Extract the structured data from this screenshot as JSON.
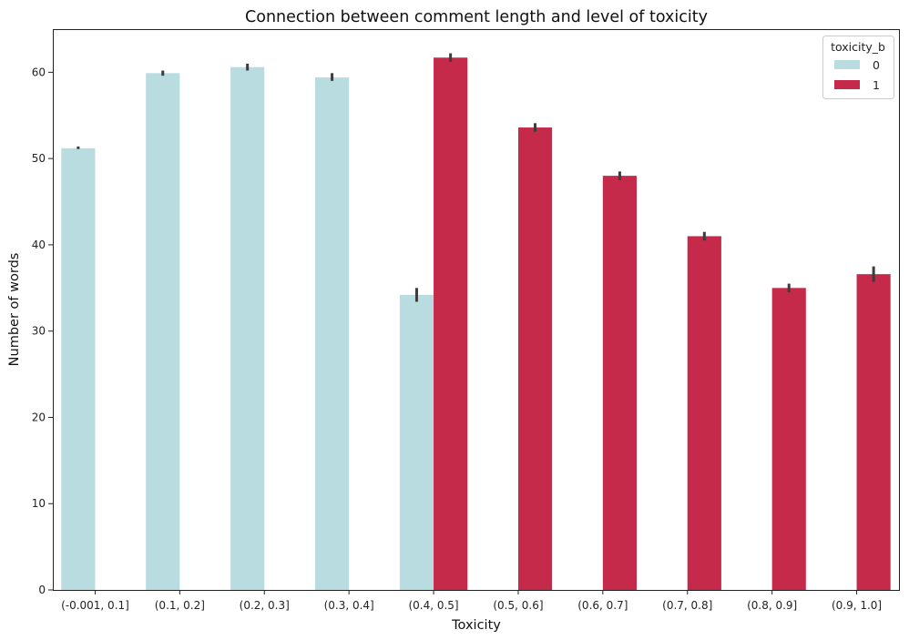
{
  "chart_data": {
    "type": "bar",
    "title": "Connection between comment length and level of toxicity",
    "xlabel": "Toxicity",
    "ylabel": "Number of words",
    "categories": [
      "(-0.001, 0.1]",
      "(0.1, 0.2]",
      "(0.2, 0.3]",
      "(0.3, 0.4]",
      "(0.4, 0.5]",
      "(0.5, 0.6]",
      "(0.6, 0.7]",
      "(0.7, 0.8]",
      "(0.8, 0.9]",
      "(0.9, 1.0]"
    ],
    "ylim": [
      0,
      65
    ],
    "yticks": [
      0,
      10,
      20,
      30,
      40,
      50,
      60
    ],
    "grid": false,
    "legend": {
      "title": "toxicity_b",
      "position": "top-right"
    },
    "series": [
      {
        "name": "0",
        "color": "#b8dce0",
        "values": [
          51.2,
          59.9,
          60.6,
          59.4,
          34.2,
          null,
          null,
          null,
          null,
          null
        ],
        "err_low": [
          51.1,
          59.6,
          60.2,
          59.0,
          33.4,
          null,
          null,
          null,
          null,
          null
        ],
        "err_high": [
          51.4,
          60.2,
          61.0,
          59.9,
          35.0,
          null,
          null,
          null,
          null,
          null
        ]
      },
      {
        "name": "1",
        "color": "#c52a4a",
        "values": [
          null,
          null,
          null,
          null,
          61.7,
          53.6,
          48.0,
          41.0,
          35.0,
          36.6
        ],
        "err_low": [
          null,
          null,
          null,
          null,
          61.2,
          53.1,
          47.5,
          40.5,
          34.5,
          35.7
        ],
        "err_high": [
          null,
          null,
          null,
          null,
          62.2,
          54.1,
          48.5,
          41.5,
          35.5,
          37.5
        ]
      }
    ]
  }
}
